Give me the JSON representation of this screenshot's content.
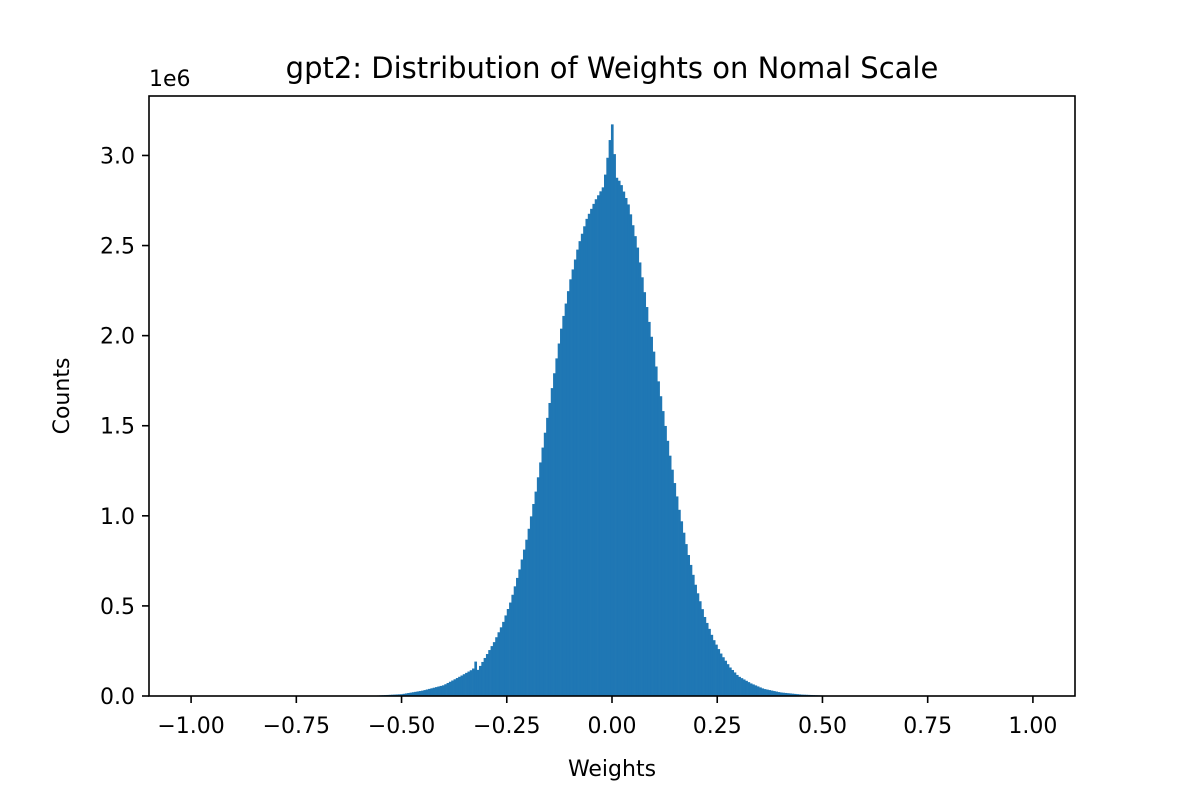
{
  "chart_data": {
    "type": "bar",
    "title": "gpt2: Distribution of Weights on Nomal Scale",
    "xlabel": "Weights",
    "ylabel": "Counts",
    "y_offset_label": "1e6",
    "xlim": [
      -1.1,
      1.1
    ],
    "ylim": [
      0,
      3.33
    ],
    "grid": false,
    "legend": "none",
    "x_ticks": [
      -1.0,
      -0.75,
      -0.5,
      -0.25,
      0.0,
      0.25,
      0.5,
      0.75,
      1.0
    ],
    "x_tick_labels": [
      "−1.00",
      "−0.75",
      "−0.50",
      "−0.25",
      "0.00",
      "0.25",
      "0.50",
      "0.75",
      "1.00"
    ],
    "y_ticks": [
      0.0,
      0.5,
      1.0,
      1.5,
      2.0,
      2.5,
      3.0
    ],
    "y_tick_labels": [
      "0.0",
      "0.5",
      "1.0",
      "1.5",
      "2.0",
      "2.5",
      "3.0"
    ],
    "bar_color": "#1f77b4",
    "series": [
      {
        "x": [
          -0.58,
          -0.5,
          -0.45,
          -0.4,
          -0.36,
          -0.33,
          -0.325,
          -0.32,
          -0.3,
          -0.28,
          -0.26,
          -0.24,
          -0.22,
          -0.2,
          -0.18,
          -0.16,
          -0.14,
          -0.12,
          -0.1,
          -0.08,
          -0.06,
          -0.04,
          -0.02,
          -0.01,
          0.0,
          0.01,
          0.02,
          0.04,
          0.06,
          0.08,
          0.1,
          0.12,
          0.14,
          0.16,
          0.18,
          0.2,
          0.22,
          0.24,
          0.26,
          0.28,
          0.3,
          0.33,
          0.36,
          0.4,
          0.45,
          0.5,
          0.55
        ],
        "values": [
          0.0,
          0.01,
          0.03,
          0.06,
          0.11,
          0.15,
          0.2,
          0.14,
          0.22,
          0.3,
          0.4,
          0.53,
          0.7,
          0.9,
          1.15,
          1.45,
          1.75,
          2.05,
          2.3,
          2.5,
          2.65,
          2.75,
          2.83,
          3.0,
          3.18,
          2.88,
          2.85,
          2.72,
          2.5,
          2.2,
          1.9,
          1.6,
          1.3,
          1.03,
          0.8,
          0.6,
          0.44,
          0.32,
          0.23,
          0.16,
          0.11,
          0.07,
          0.04,
          0.02,
          0.008,
          0.003,
          0.0
        ]
      }
    ]
  }
}
